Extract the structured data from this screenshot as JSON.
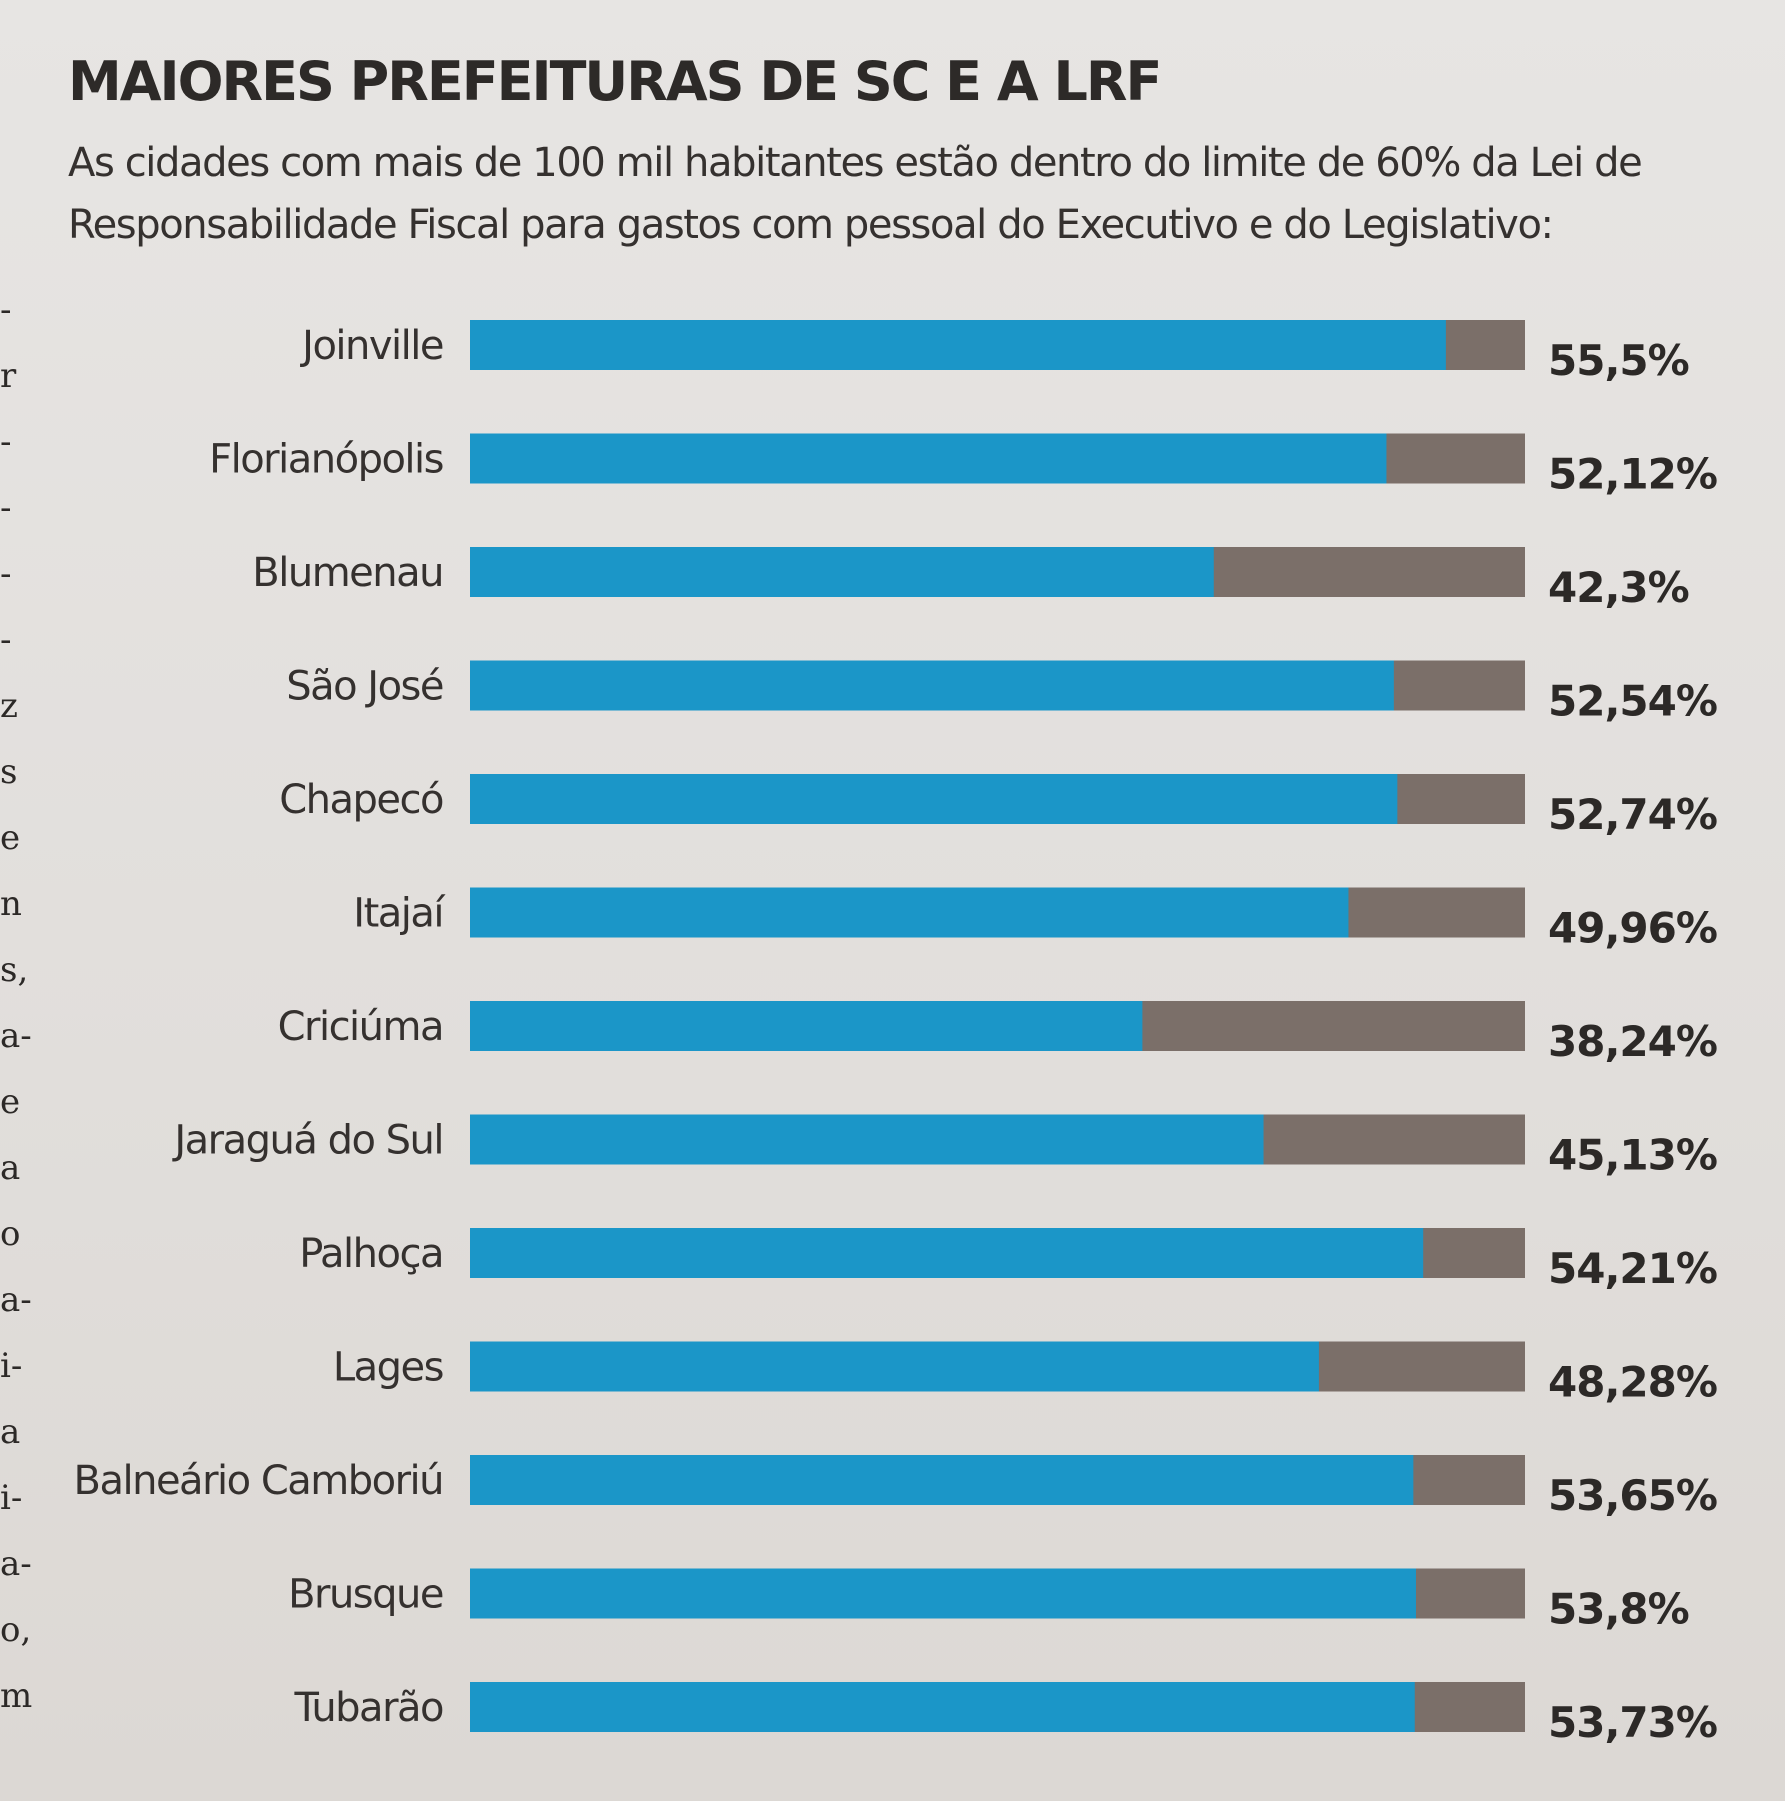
{
  "chart_data": {
    "type": "bar",
    "orientation": "horizontal",
    "stacked": true,
    "title": "MAIORES PREFEITURAS DE SC E A LRF",
    "subtitle": "As cidades com mais de 100 mil habitantes estão dentro do limite de 60% da Lei de Responsabilidade Fiscal para gastos com pessoal do Executivo e do Legislativo:",
    "xlim": [
      0,
      60
    ],
    "limit": 60,
    "colors": {
      "value": "#1b96c8",
      "remainder": "#7b6f69"
    },
    "categories": [
      "Joinville",
      "Florianópolis",
      "Blumenau",
      "São José",
      "Chapecó",
      "Itajaí",
      "Criciúma",
      "Jaraguá do Sul",
      "Palhoça",
      "Lages",
      "Balneário Camboriú",
      "Brusque",
      "Tubarão"
    ],
    "values": [
      55.5,
      52.12,
      42.3,
      52.54,
      52.74,
      49.96,
      38.24,
      45.13,
      54.21,
      48.28,
      53.65,
      53.8,
      53.73
    ],
    "value_labels": [
      "55,5%",
      "52,12%",
      "42,3%",
      "52,54%",
      "52,74%",
      "49,96%",
      "38,24%",
      "45,13%",
      "54,21%",
      "48,28%",
      "53,65%",
      "53,8%",
      "53,73%"
    ]
  },
  "margin_text": [
    "-",
    "r",
    "-",
    "-",
    "-",
    "-",
    "z",
    "s",
    "e",
    "n",
    "s,",
    "a-",
    "e",
    "a",
    "o",
    "a-",
    "i-",
    "a",
    "i-",
    "a-",
    "o,",
    "m"
  ]
}
